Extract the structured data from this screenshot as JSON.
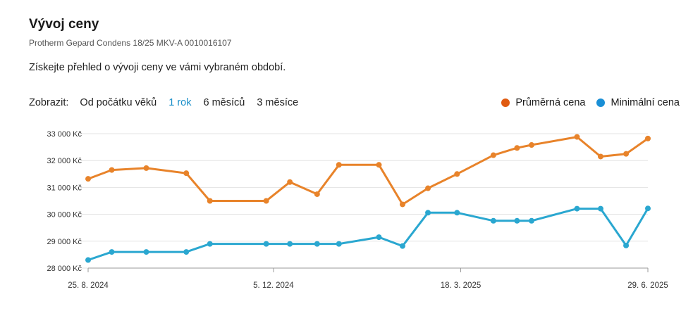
{
  "header": {
    "title": "Vývoj ceny",
    "subtitle": "Protherm Gepard Condens 18/25 MKV-A 0010016107",
    "description": "Získejte přehled o vývoji ceny ve vámi vybraném období."
  },
  "toolbar": {
    "label": "Zobrazit:",
    "options": [
      "Od počátku věků",
      "1 rok",
      "6 měsíců",
      "3 měsíce"
    ],
    "active": "1 rok"
  },
  "colors": {
    "average": "#e8832a",
    "minimum": "#2aa7d0",
    "legend_average": "#e05a10",
    "legend_minimum": "#1a8fd6",
    "active": "#1a8fc9"
  },
  "chart_data": {
    "type": "line",
    "ylim": [
      28000,
      33000
    ],
    "y_ticks": [
      28000,
      29000,
      30000,
      31000,
      32000,
      33000
    ],
    "y_tick_labels": [
      "28 000 Kč",
      "29 000 Kč",
      "30 000 Kč",
      "31 000 Kč",
      "32 000 Kč",
      "33 000 Kč"
    ],
    "x_range": [
      "2024-08-25",
      "2025-06-29"
    ],
    "x_tick_labels": [
      {
        "date": "2024-08-25",
        "label": "25. 8. 2024"
      },
      {
        "date": "2024-12-05",
        "label": "5. 12. 2024"
      },
      {
        "date": "2025-03-18",
        "label": "18. 3. 2025"
      },
      {
        "date": "2025-06-29",
        "label": "29. 6. 2025"
      }
    ],
    "legend": "top-right",
    "grid": true,
    "series": [
      {
        "name": "Průměrná cena",
        "points": [
          {
            "x": "2024-08-25",
            "y": 31320
          },
          {
            "x": "2024-09-07",
            "y": 31650
          },
          {
            "x": "2024-09-26",
            "y": 31720
          },
          {
            "x": "2024-10-18",
            "y": 31530
          },
          {
            "x": "2024-10-31",
            "y": 30500
          },
          {
            "x": "2024-12-01",
            "y": 30500
          },
          {
            "x": "2024-12-14",
            "y": 31200
          },
          {
            "x": "2024-12-29",
            "y": 30750
          },
          {
            "x": "2025-01-10",
            "y": 31840
          },
          {
            "x": "2025-02-01",
            "y": 31840
          },
          {
            "x": "2025-02-14",
            "y": 30370
          },
          {
            "x": "2025-02-28",
            "y": 30970
          },
          {
            "x": "2025-03-16",
            "y": 31500
          },
          {
            "x": "2025-04-05",
            "y": 32200
          },
          {
            "x": "2025-04-18",
            "y": 32470
          },
          {
            "x": "2025-04-26",
            "y": 32580
          },
          {
            "x": "2025-05-21",
            "y": 32880
          },
          {
            "x": "2025-06-03",
            "y": 32150
          },
          {
            "x": "2025-06-17",
            "y": 32250
          },
          {
            "x": "2025-06-29",
            "y": 32820
          }
        ]
      },
      {
        "name": "Minimální cena",
        "points": [
          {
            "x": "2024-08-25",
            "y": 28300
          },
          {
            "x": "2024-09-07",
            "y": 28600
          },
          {
            "x": "2024-09-26",
            "y": 28600
          },
          {
            "x": "2024-10-18",
            "y": 28600
          },
          {
            "x": "2024-10-31",
            "y": 28900
          },
          {
            "x": "2024-12-01",
            "y": 28900
          },
          {
            "x": "2024-12-14",
            "y": 28900
          },
          {
            "x": "2024-12-29",
            "y": 28900
          },
          {
            "x": "2025-01-10",
            "y": 28900
          },
          {
            "x": "2025-02-01",
            "y": 29150
          },
          {
            "x": "2025-02-14",
            "y": 28820
          },
          {
            "x": "2025-02-28",
            "y": 30060
          },
          {
            "x": "2025-03-16",
            "y": 30060
          },
          {
            "x": "2025-04-05",
            "y": 29760
          },
          {
            "x": "2025-04-18",
            "y": 29760
          },
          {
            "x": "2025-04-26",
            "y": 29760
          },
          {
            "x": "2025-05-21",
            "y": 30210
          },
          {
            "x": "2025-06-03",
            "y": 30210
          },
          {
            "x": "2025-06-17",
            "y": 28840
          },
          {
            "x": "2025-06-29",
            "y": 30220
          }
        ]
      }
    ]
  }
}
